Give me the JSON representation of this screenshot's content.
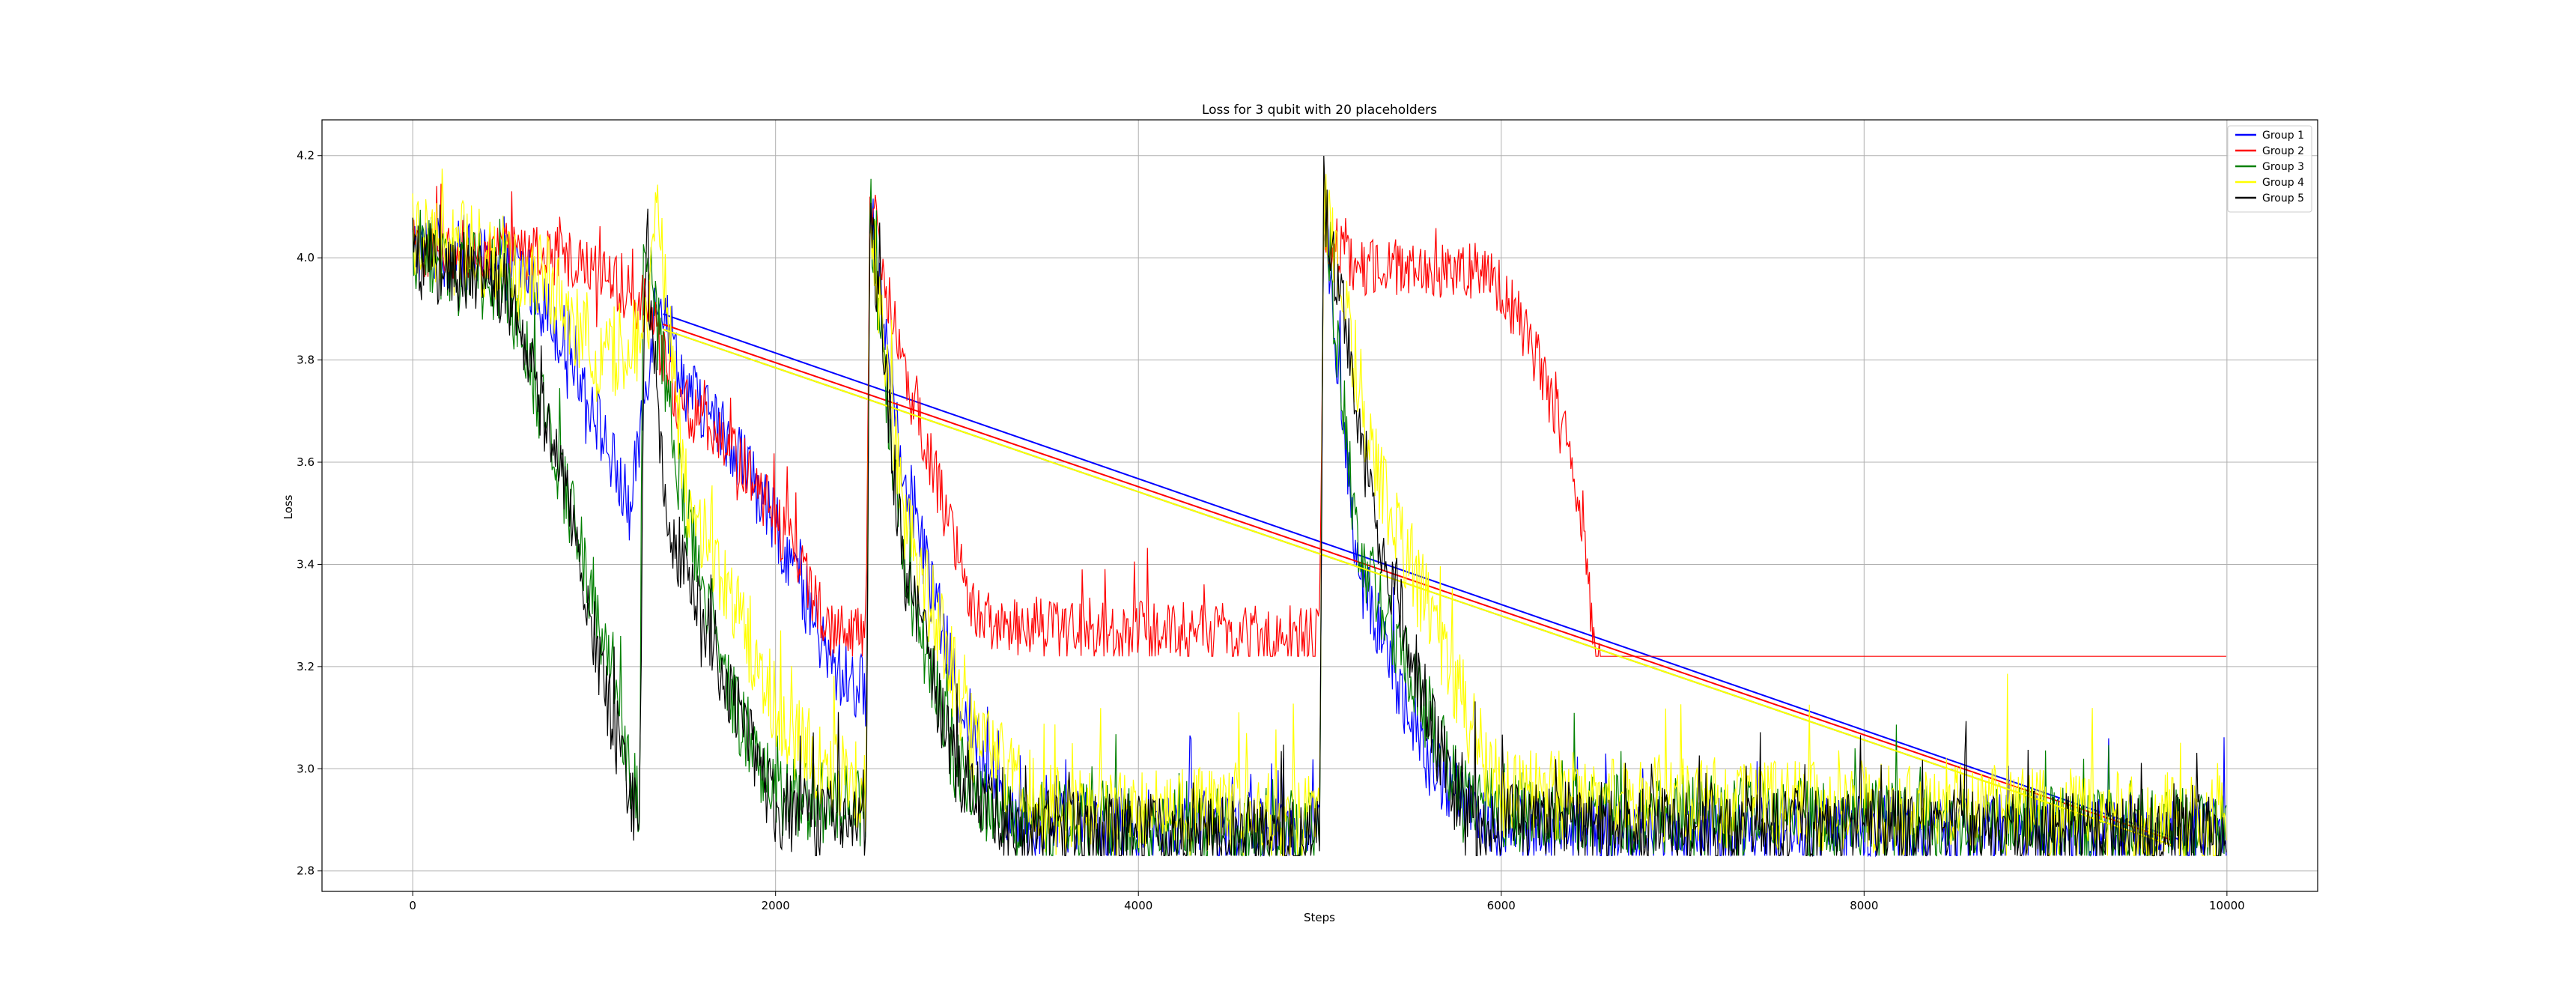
{
  "chart_data": {
    "type": "line",
    "title": "Loss for 3 qubit with 20 placeholders",
    "xlabel": "Steps",
    "ylabel": "Loss",
    "xlim": [
      -500,
      10500
    ],
    "ylim": [
      2.76,
      4.27
    ],
    "xticks": [
      0,
      2000,
      4000,
      6000,
      8000,
      10000
    ],
    "yticks": [
      2.8,
      3.0,
      3.2,
      3.4,
      3.6,
      3.8,
      4.0,
      4.2
    ],
    "grid": true,
    "legend_position": "top-right",
    "x_range": [
      0,
      10000
    ],
    "series": [
      {
        "name": "Group 1",
        "color": "#0000ff",
        "noise": 0.07,
        "floor": 2.83,
        "points": [
          [
            0,
            4.02
          ],
          [
            600,
            3.98
          ],
          [
            900,
            3.8
          ],
          [
            1200,
            3.5
          ],
          [
            1350,
            3.95
          ],
          [
            1500,
            3.75
          ],
          [
            1800,
            3.62
          ],
          [
            2100,
            3.4
          ],
          [
            2300,
            3.2
          ],
          [
            2500,
            3.15
          ],
          [
            2520,
            4.1
          ],
          [
            2700,
            3.6
          ],
          [
            3000,
            3.15
          ],
          [
            3300,
            2.9
          ],
          [
            5000,
            2.88
          ],
          [
            5020,
            4.1
          ],
          [
            5200,
            3.4
          ],
          [
            5600,
            3.0
          ],
          [
            6000,
            2.88
          ],
          [
            10000,
            2.88
          ]
        ],
        "wrap": [
          [
            1380,
            3.89
          ],
          [
            9750,
            2.86
          ]
        ]
      },
      {
        "name": "Group 2",
        "color": "#ff0000",
        "noise": 0.06,
        "floor": 3.22,
        "points": [
          [
            0,
            4.02
          ],
          [
            900,
            4.0
          ],
          [
            1300,
            3.9
          ],
          [
            1450,
            3.72
          ],
          [
            1700,
            3.66
          ],
          [
            1900,
            3.55
          ],
          [
            2100,
            3.42
          ],
          [
            2300,
            3.28
          ],
          [
            2500,
            3.25
          ],
          [
            2520,
            4.12
          ],
          [
            2700,
            3.78
          ],
          [
            2900,
            3.55
          ],
          [
            3100,
            3.3
          ],
          [
            3300,
            3.28
          ],
          [
            5000,
            3.26
          ],
          [
            5020,
            4.05
          ],
          [
            5200,
            3.98
          ],
          [
            5800,
            3.98
          ],
          [
            6000,
            3.95
          ],
          [
            6200,
            3.8
          ],
          [
            6400,
            3.6
          ],
          [
            6500,
            3.3
          ],
          [
            6600,
            3.05
          ],
          [
            6800,
            2.93
          ],
          [
            10000,
            2.88
          ]
        ],
        "wrap": [
          [
            1380,
            3.87
          ],
          [
            9700,
            2.86
          ]
        ]
      },
      {
        "name": "Group 3",
        "color": "#008000",
        "noise": 0.08,
        "floor": 2.83,
        "points": [
          [
            0,
            4.02
          ],
          [
            500,
            3.95
          ],
          [
            800,
            3.6
          ],
          [
            1100,
            3.2
          ],
          [
            1250,
            2.9
          ],
          [
            1270,
            4.05
          ],
          [
            1500,
            3.5
          ],
          [
            1800,
            3.1
          ],
          [
            2000,
            2.95
          ],
          [
            2500,
            2.92
          ],
          [
            2520,
            4.1
          ],
          [
            2700,
            3.4
          ],
          [
            3000,
            3.0
          ],
          [
            3300,
            2.9
          ],
          [
            5000,
            2.88
          ],
          [
            5020,
            4.1
          ],
          [
            5200,
            3.45
          ],
          [
            5600,
            3.1
          ],
          [
            5800,
            2.92
          ],
          [
            10000,
            2.88
          ]
        ],
        "wrap": [
          [
            1380,
            3.86
          ],
          [
            9700,
            2.85
          ]
        ]
      },
      {
        "name": "Group 4",
        "color": "#ffff00",
        "noise": 0.09,
        "floor": 2.83,
        "points": [
          [
            0,
            4.05
          ],
          [
            700,
            3.98
          ],
          [
            1000,
            3.8
          ],
          [
            1300,
            3.85
          ],
          [
            1340,
            4.15
          ],
          [
            1500,
            3.55
          ],
          [
            1800,
            3.3
          ],
          [
            2100,
            3.05
          ],
          [
            2500,
            2.95
          ],
          [
            2520,
            4.1
          ],
          [
            2700,
            3.5
          ],
          [
            3100,
            3.05
          ],
          [
            3500,
            2.92
          ],
          [
            5000,
            2.9
          ],
          [
            5020,
            4.1
          ],
          [
            5300,
            3.6
          ],
          [
            5700,
            3.2
          ],
          [
            6000,
            2.95
          ],
          [
            10000,
            2.9
          ]
        ],
        "wrap": [
          [
            1380,
            3.86
          ],
          [
            9700,
            2.85
          ]
        ]
      },
      {
        "name": "Group 5",
        "color": "#000000",
        "noise": 0.08,
        "floor": 2.83,
        "points": [
          [
            0,
            4.0
          ],
          [
            500,
            3.95
          ],
          [
            800,
            3.6
          ],
          [
            1100,
            3.1
          ],
          [
            1250,
            2.88
          ],
          [
            1280,
            4.05
          ],
          [
            1400,
            3.5
          ],
          [
            1700,
            3.2
          ],
          [
            2000,
            2.92
          ],
          [
            2500,
            2.88
          ],
          [
            2520,
            4.1
          ],
          [
            2700,
            3.4
          ],
          [
            3000,
            3.0
          ],
          [
            3300,
            2.88
          ],
          [
            5000,
            2.86
          ],
          [
            5020,
            4.12
          ],
          [
            5300,
            3.5
          ],
          [
            5600,
            3.1
          ],
          [
            5800,
            2.9
          ],
          [
            10000,
            2.87
          ]
        ],
        "wrap": null
      }
    ]
  }
}
